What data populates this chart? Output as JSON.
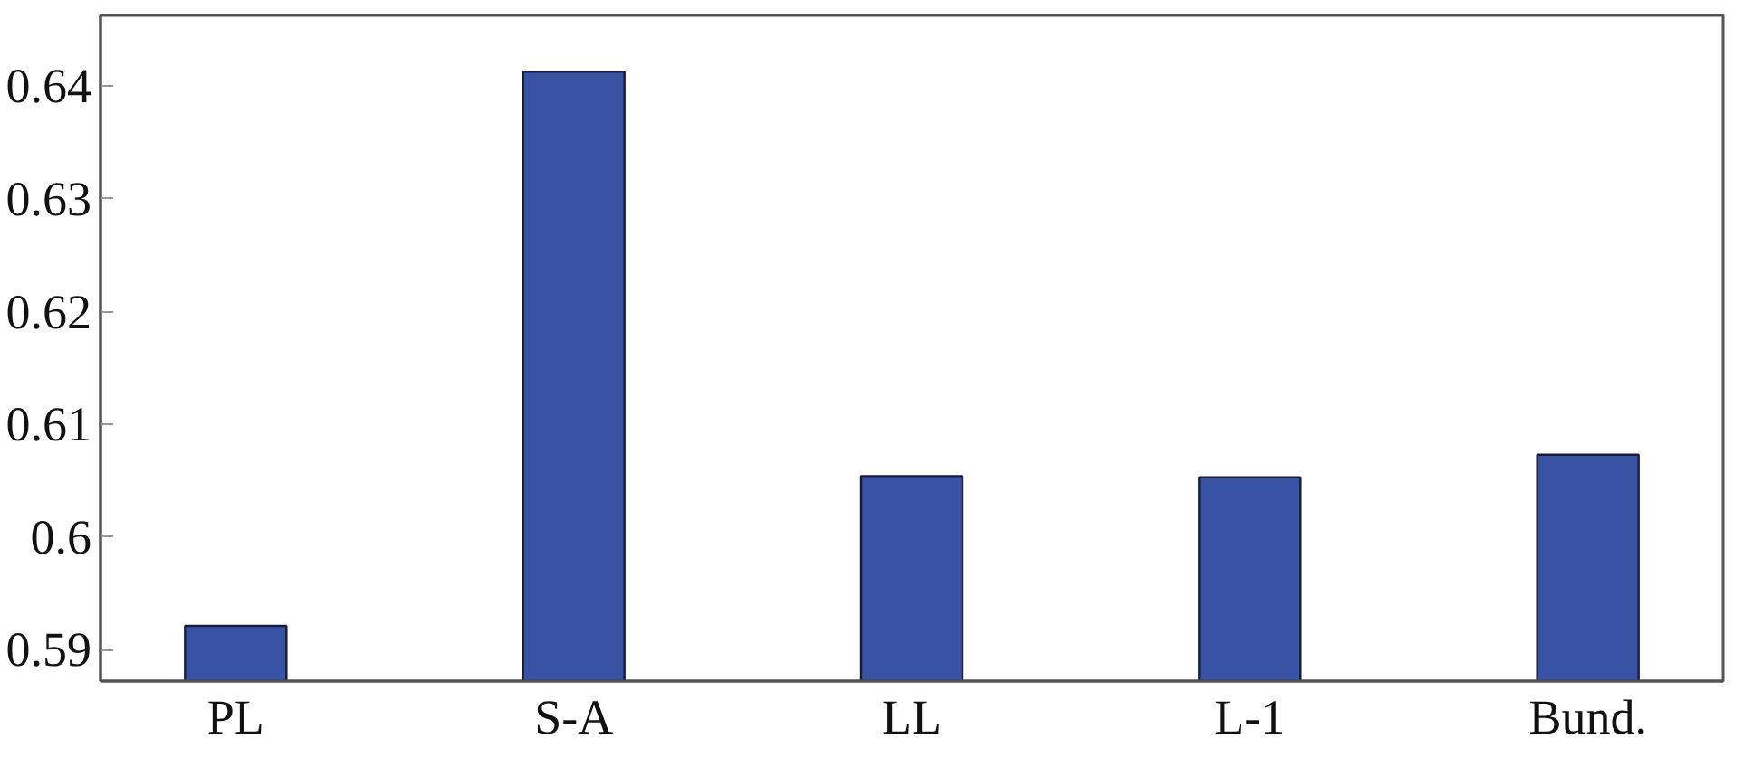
{
  "chart_data": {
    "type": "bar",
    "categories": [
      "PL",
      "S-A",
      "LL",
      "L-1",
      "Bund."
    ],
    "values": [
      0.5921,
      0.6413,
      0.6054,
      0.6053,
      0.6073
    ],
    "color": "#3953a4",
    "ylim": [
      0.5872,
      0.6463
    ],
    "yticks": [
      0.59,
      {
        "value": 0.6,
        "label": "0.6"
      },
      0.61,
      0.62,
      0.63,
      0.64
    ],
    "grid": false
  }
}
